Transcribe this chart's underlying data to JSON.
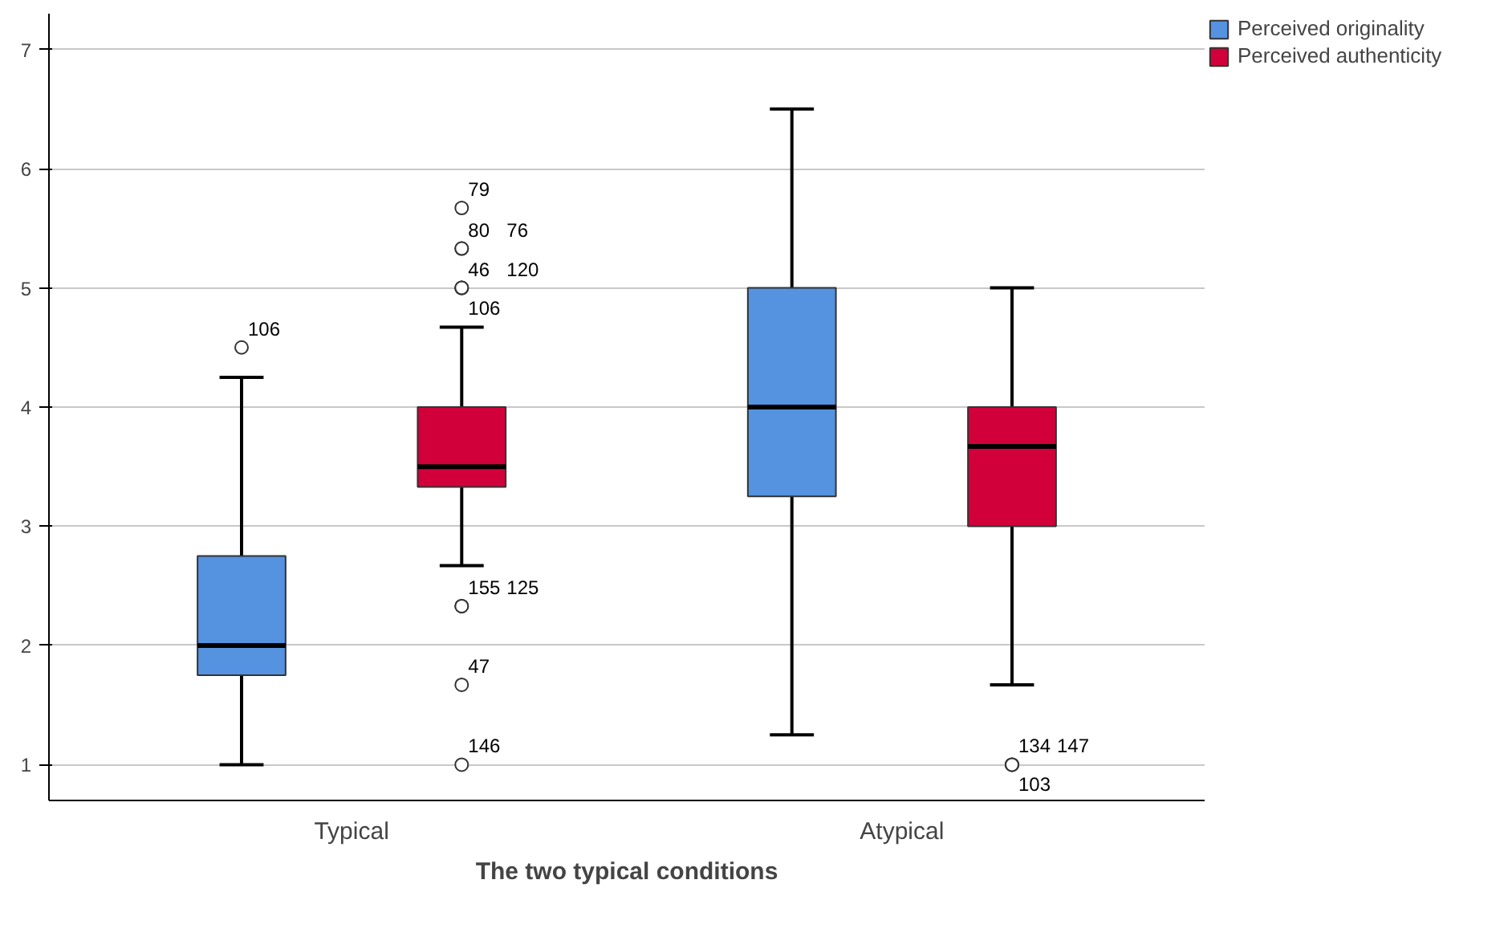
{
  "chart_data": {
    "type": "box",
    "xlabel": "The two typical conditions",
    "categories": [
      "Typical",
      "Atypical"
    ],
    "series": [
      {
        "name": "Perceived originality",
        "color": "#5592e0",
        "boxes": [
          {
            "low": 1.0,
            "q1": 1.75,
            "median": 2.0,
            "q3": 2.75,
            "high": 4.25,
            "outliers": [
              4.5
            ]
          },
          {
            "low": 1.25,
            "q1": 3.25,
            "median": 4.0,
            "q3": 5.0,
            "high": 6.5
          }
        ]
      },
      {
        "name": "Perceived authenticity",
        "color": "#d2003a",
        "boxes": [
          {
            "low": 2.67,
            "q1": 3.33,
            "median": 3.5,
            "q3": 4.0,
            "high": 4.67,
            "outliers": [
              5.67,
              5.33,
              5.33,
              5.0,
              5.0,
              5.0,
              2.33,
              2.33,
              1.67,
              1.0
            ]
          },
          {
            "low": 1.67,
            "q1": 3.0,
            "median": 3.67,
            "q3": 4.0,
            "high": 5.0,
            "outliers": [
              1.0,
              1.0,
              1.0
            ]
          }
        ]
      }
    ],
    "ylim": [
      0.7,
      7.3
    ],
    "yticks": [
      1,
      2,
      3,
      4,
      5,
      6,
      7
    ],
    "grid": "y",
    "legend": "top right",
    "annotations": [
      "106",
      "79",
      "80",
      "76",
      "46",
      "120",
      "106",
      "155",
      "125",
      "47",
      "146",
      "134",
      "147",
      "103"
    ]
  }
}
